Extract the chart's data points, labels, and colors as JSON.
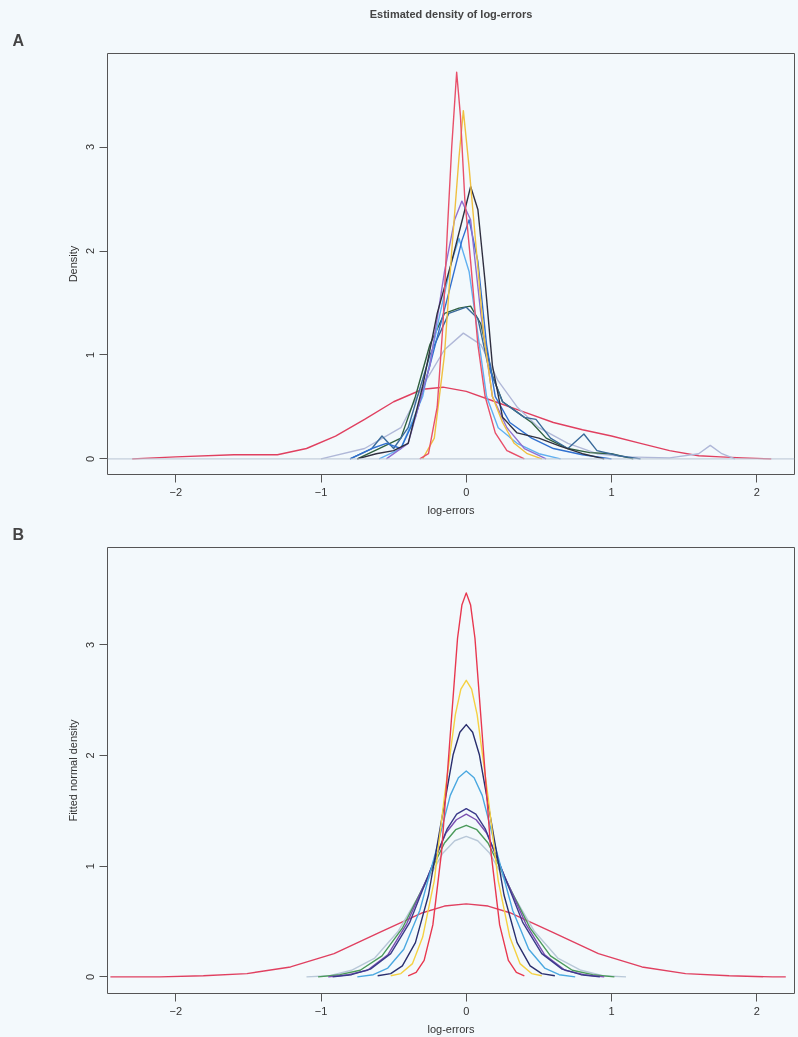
{
  "chart_data": [
    {
      "type": "line",
      "title": "Estimated density of log-errors",
      "annotations": [
        "A"
      ],
      "xlabel": "log-errors",
      "ylabel": "Density",
      "xlim": [
        -2.47,
        2.26
      ],
      "ylim": [
        -0.15,
        3.9
      ],
      "xticks": [
        -2,
        -1,
        0,
        1,
        2
      ],
      "yticks": [
        0,
        1,
        2,
        3
      ],
      "grid": false,
      "ref_lines": [
        {
          "axis": "y",
          "value": 0,
          "color": "#b8c4d4"
        }
      ],
      "series": [
        {
          "color": "#e04060",
          "x": [
            -2.3,
            -2.0,
            -1.6,
            -1.3,
            -1.1,
            -0.9,
            -0.7,
            -0.5,
            -0.3,
            -0.16,
            0.0,
            0.2,
            0.4,
            0.6,
            0.8,
            1.0,
            1.2,
            1.4,
            1.6,
            1.75,
            1.9,
            2.1
          ],
          "values": [
            0.0,
            0.02,
            0.04,
            0.04,
            0.1,
            0.22,
            0.38,
            0.55,
            0.67,
            0.69,
            0.65,
            0.55,
            0.45,
            0.35,
            0.28,
            0.22,
            0.15,
            0.08,
            0.03,
            0.02,
            0.01,
            0.0
          ]
        },
        {
          "color": "#b0b8d8",
          "x": [
            -1.0,
            -0.7,
            -0.45,
            -0.3,
            -0.15,
            -0.02,
            0.1,
            0.22,
            0.35,
            0.5,
            0.7,
            0.9,
            1.1,
            1.4,
            1.6,
            1.68,
            1.76,
            1.85
          ],
          "values": [
            0.0,
            0.1,
            0.3,
            0.7,
            1.05,
            1.21,
            1.1,
            0.75,
            0.5,
            0.3,
            0.15,
            0.05,
            0.02,
            0.01,
            0.05,
            0.13,
            0.05,
            0.0
          ]
        },
        {
          "color": "#306040",
          "x": [
            -0.75,
            -0.6,
            -0.45,
            -0.35,
            -0.25,
            -0.15,
            -0.05,
            0.03,
            0.1,
            0.18,
            0.25,
            0.35,
            0.45,
            0.55,
            0.7,
            0.85,
            1.0,
            1.15
          ],
          "values": [
            0.0,
            0.1,
            0.2,
            0.6,
            1.1,
            1.4,
            1.45,
            1.47,
            1.3,
            0.8,
            0.55,
            0.45,
            0.35,
            0.2,
            0.1,
            0.06,
            0.05,
            0.0
          ]
        },
        {
          "color": "#3a6a9a",
          "x": [
            -0.8,
            -0.65,
            -0.58,
            -0.5,
            -0.4,
            -0.25,
            -0.12,
            0.0,
            0.08,
            0.15,
            0.25,
            0.4,
            0.48,
            0.58,
            0.7,
            0.81,
            0.9,
            1.05,
            1.2
          ],
          "values": [
            0.0,
            0.1,
            0.22,
            0.1,
            0.3,
            1.0,
            1.4,
            1.46,
            1.35,
            0.9,
            0.55,
            0.4,
            0.38,
            0.2,
            0.1,
            0.24,
            0.08,
            0.03,
            0.0
          ]
        },
        {
          "color": "#60b0f0",
          "x": [
            -0.6,
            -0.45,
            -0.3,
            -0.18,
            -0.1,
            -0.05,
            0.02,
            0.08,
            0.14,
            0.22,
            0.35,
            0.5,
            0.65
          ],
          "values": [
            0.0,
            0.1,
            0.6,
            1.4,
            1.9,
            2.12,
            1.8,
            1.2,
            0.6,
            0.3,
            0.15,
            0.05,
            0.0
          ]
        },
        {
          "color": "#3070d0",
          "x": [
            -0.8,
            -0.65,
            -0.55,
            -0.45,
            -0.35,
            -0.25,
            -0.12,
            -0.03,
            0.02,
            0.08,
            0.14,
            0.2,
            0.3,
            0.45,
            0.6,
            0.8,
            1.0
          ],
          "values": [
            0.0,
            0.1,
            0.15,
            0.1,
            0.4,
            0.9,
            1.6,
            2.1,
            2.3,
            1.9,
            1.1,
            0.6,
            0.35,
            0.2,
            0.1,
            0.04,
            0.0
          ]
        },
        {
          "color": "#9070d0",
          "x": [
            -0.55,
            -0.4,
            -0.25,
            -0.15,
            -0.08,
            -0.03,
            0.03,
            0.1,
            0.18,
            0.28,
            0.4,
            0.55
          ],
          "values": [
            0.0,
            0.15,
            0.9,
            1.8,
            2.3,
            2.48,
            2.3,
            1.4,
            0.6,
            0.3,
            0.1,
            0.0
          ]
        },
        {
          "color": "#303040",
          "x": [
            -0.75,
            -0.62,
            -0.5,
            -0.4,
            -0.3,
            -0.2,
            -0.1,
            0.0,
            0.03,
            0.08,
            0.13,
            0.18,
            0.25,
            0.35,
            0.5,
            0.65,
            0.8,
            0.95
          ],
          "values": [
            0.0,
            0.05,
            0.08,
            0.15,
            0.7,
            1.4,
            1.9,
            2.45,
            2.62,
            2.4,
            1.7,
            0.9,
            0.4,
            0.25,
            0.2,
            0.12,
            0.05,
            0.0
          ]
        },
        {
          "color": "#f0c040",
          "x": [
            -0.3,
            -0.22,
            -0.15,
            -0.1,
            -0.05,
            -0.02,
            0.02,
            0.07,
            0.12,
            0.18,
            0.25,
            0.33,
            0.42,
            0.52
          ],
          "values": [
            0.0,
            0.2,
            1.0,
            2.0,
            2.9,
            3.35,
            2.8,
            2.0,
            1.2,
            0.6,
            0.35,
            0.15,
            0.05,
            0.0
          ]
        },
        {
          "color": "#e8506a",
          "x": [
            -0.32,
            -0.26,
            -0.2,
            -0.16,
            -0.13,
            -0.1,
            -0.066,
            -0.04,
            -0.01,
            0.03,
            0.08,
            0.13,
            0.2,
            0.28,
            0.4
          ],
          "values": [
            0.0,
            0.05,
            0.5,
            1.3,
            2.2,
            3.0,
            3.72,
            3.3,
            2.5,
            1.9,
            1.1,
            0.6,
            0.25,
            0.08,
            0.0
          ]
        }
      ]
    },
    {
      "type": "line",
      "annotations": [
        "B"
      ],
      "xlabel": "log-errors",
      "ylabel": "Fitted normal density",
      "xlim": [
        -2.47,
        2.26
      ],
      "ylim": [
        -0.15,
        3.88
      ],
      "xticks": [
        -2,
        -1,
        0,
        1,
        2
      ],
      "yticks": [
        0,
        1,
        2,
        3
      ],
      "grid": false,
      "series": [
        {
          "color": "#e04060",
          "x": [
            -2.45,
            -2.11,
            -1.81,
            -1.51,
            -1.21,
            -0.91,
            -0.6,
            -0.3,
            -0.15,
            0,
            0.15,
            0.3,
            0.6,
            0.91,
            1.21,
            1.51,
            1.81,
            2.11,
            2.2
          ],
          "values": [
            0.0,
            0.0,
            0.01,
            0.03,
            0.09,
            0.21,
            0.4,
            0.58,
            0.64,
            0.66,
            0.64,
            0.58,
            0.4,
            0.21,
            0.09,
            0.03,
            0.01,
            0.0,
            0.0
          ]
        },
        {
          "color": "#b8c8d8",
          "x": [
            -1.1,
            -0.94,
            -0.79,
            -0.63,
            -0.47,
            -0.31,
            -0.16,
            -0.079,
            0,
            0.079,
            0.16,
            0.31,
            0.47,
            0.63,
            0.79,
            0.94,
            1.1
          ],
          "values": [
            0.0,
            0.01,
            0.06,
            0.17,
            0.41,
            0.77,
            1.12,
            1.23,
            1.27,
            1.23,
            1.12,
            0.77,
            0.41,
            0.17,
            0.06,
            0.01,
            0.0
          ]
        },
        {
          "color": "#4a9a5a",
          "x": [
            -1.02,
            -0.87,
            -0.73,
            -0.58,
            -0.44,
            -0.29,
            -0.15,
            -0.073,
            0,
            0.073,
            0.15,
            0.29,
            0.44,
            0.58,
            0.73,
            0.87,
            1.02
          ],
          "values": [
            0.0,
            0.02,
            0.06,
            0.19,
            0.44,
            0.83,
            1.21,
            1.33,
            1.37,
            1.33,
            1.21,
            0.83,
            0.44,
            0.19,
            0.06,
            0.02,
            0.0
          ]
        },
        {
          "color": "#7a4fb0",
          "x": [
            -0.95,
            -0.81,
            -0.68,
            -0.54,
            -0.41,
            -0.27,
            -0.14,
            -0.068,
            0,
            0.068,
            0.14,
            0.27,
            0.41,
            0.54,
            0.68,
            0.81,
            0.95
          ],
          "values": [
            0.0,
            0.02,
            0.06,
            0.2,
            0.48,
            0.89,
            1.3,
            1.42,
            1.47,
            1.42,
            1.3,
            0.89,
            0.48,
            0.2,
            0.06,
            0.02,
            0.0
          ]
        },
        {
          "color": "#3a3a8a",
          "x": [
            -0.92,
            -0.79,
            -0.66,
            -0.52,
            -0.39,
            -0.26,
            -0.13,
            -0.066,
            0,
            0.066,
            0.13,
            0.26,
            0.39,
            0.52,
            0.66,
            0.79,
            0.92
          ],
          "values": [
            0.0,
            0.02,
            0.07,
            0.21,
            0.49,
            0.92,
            1.34,
            1.47,
            1.52,
            1.47,
            1.34,
            0.92,
            0.49,
            0.21,
            0.07,
            0.02,
            0.0
          ]
        },
        {
          "color": "#4aa8e0",
          "x": [
            -0.75,
            -0.64,
            -0.54,
            -0.43,
            -0.32,
            -0.21,
            -0.11,
            -0.054,
            0,
            0.054,
            0.11,
            0.21,
            0.32,
            0.43,
            0.54,
            0.64,
            0.75
          ],
          "values": [
            0.0,
            0.02,
            0.08,
            0.25,
            0.6,
            1.13,
            1.64,
            1.8,
            1.86,
            1.8,
            1.64,
            1.13,
            0.6,
            0.25,
            0.08,
            0.02,
            0.0
          ]
        },
        {
          "color": "#2a2f6e",
          "x": [
            -0.61,
            -0.52,
            -0.44,
            -0.35,
            -0.26,
            -0.175,
            -0.09,
            -0.044,
            0,
            0.044,
            0.09,
            0.175,
            0.26,
            0.35,
            0.44,
            0.52,
            0.61
          ],
          "values": [
            0.01,
            0.03,
            0.1,
            0.31,
            0.74,
            1.38,
            2.01,
            2.21,
            2.28,
            2.21,
            2.01,
            1.38,
            0.74,
            0.31,
            0.1,
            0.03,
            0.01
          ]
        },
        {
          "color": "#f5d142",
          "x": [
            -0.52,
            -0.45,
            -0.37,
            -0.3,
            -0.22,
            -0.15,
            -0.075,
            -0.037,
            0,
            0.037,
            0.075,
            0.15,
            0.22,
            0.3,
            0.37,
            0.45,
            0.52
          ],
          "values": [
            0.01,
            0.03,
            0.12,
            0.36,
            0.87,
            1.63,
            2.37,
            2.6,
            2.68,
            2.6,
            2.37,
            1.63,
            0.87,
            0.36,
            0.12,
            0.03,
            0.01
          ]
        },
        {
          "color": "#e8384f",
          "x": [
            -0.4,
            -0.345,
            -0.29,
            -0.23,
            -0.17,
            -0.115,
            -0.06,
            -0.03,
            0,
            0.03,
            0.06,
            0.115,
            0.17,
            0.23,
            0.29,
            0.345,
            0.4
          ],
          "values": [
            0.01,
            0.04,
            0.15,
            0.47,
            1.13,
            2.1,
            3.06,
            3.36,
            3.47,
            3.36,
            3.06,
            2.1,
            1.13,
            0.47,
            0.15,
            0.04,
            0.01
          ]
        }
      ]
    }
  ]
}
